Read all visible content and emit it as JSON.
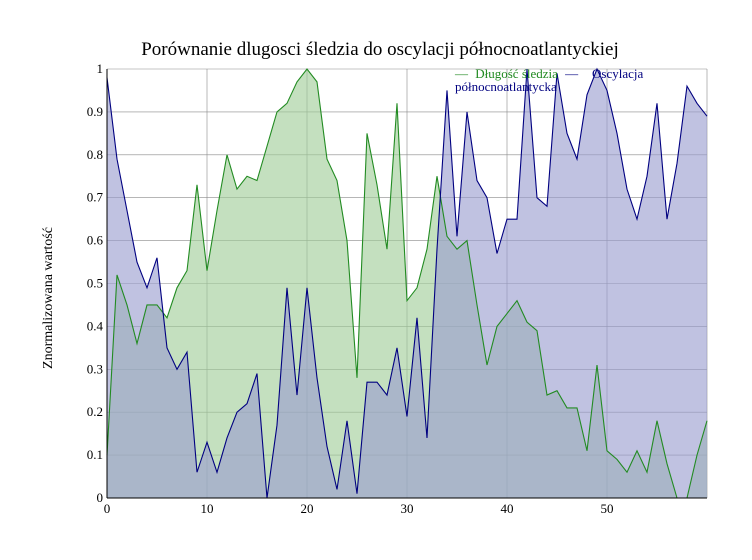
{
  "chart_data": {
    "type": "area",
    "title": "Porównanie dlugosci śledzia do oscylacji północnoatlantyckiej",
    "xlabel": "",
    "ylabel": "Znormalizowana wartość",
    "xlim": [
      0,
      60
    ],
    "ylim": [
      0,
      1
    ],
    "x_ticks": [
      0,
      10,
      20,
      30,
      40,
      50
    ],
    "y_ticks": [
      0,
      0.1,
      0.2,
      0.3,
      0.4,
      0.5,
      0.6,
      0.7,
      0.8,
      0.9,
      1
    ],
    "x_tick_labels": [
      "0",
      "10",
      "20",
      "30",
      "40",
      "50"
    ],
    "y_tick_labels": [
      "0",
      "0.1",
      "0.2",
      "0.3",
      "0.4",
      "0.5",
      "0.6",
      "0.7",
      "0.8",
      "0.9",
      "1"
    ],
    "grid": true,
    "legend_position": "top-right",
    "legend_separator": "—",
    "x": [
      0,
      1,
      2,
      3,
      4,
      5,
      6,
      7,
      8,
      9,
      10,
      11,
      12,
      13,
      14,
      15,
      16,
      17,
      18,
      19,
      20,
      21,
      22,
      23,
      24,
      25,
      26,
      27,
      28,
      29,
      30,
      31,
      32,
      33,
      34,
      35,
      36,
      37,
      38,
      39,
      40,
      41,
      42,
      43,
      44,
      45,
      46,
      47,
      48,
      49,
      50,
      51,
      52,
      53,
      54,
      55,
      56,
      57,
      58,
      59,
      60
    ],
    "series": [
      {
        "name": "Długość śledzia",
        "color": "#228B22",
        "fill": "#9fcd98",
        "values": [
          0.1,
          0.52,
          0.45,
          0.36,
          0.45,
          0.45,
          0.42,
          0.49,
          0.53,
          0.73,
          0.53,
          0.67,
          0.8,
          0.72,
          0.75,
          0.74,
          0.82,
          0.9,
          0.92,
          0.97,
          1.0,
          0.97,
          0.79,
          0.74,
          0.6,
          0.28,
          0.85,
          0.73,
          0.58,
          0.92,
          0.46,
          0.49,
          0.58,
          0.75,
          0.61,
          0.58,
          0.6,
          0.45,
          0.31,
          0.4,
          0.43,
          0.46,
          0.41,
          0.39,
          0.24,
          0.25,
          0.21,
          0.21,
          0.11,
          0.31,
          0.11,
          0.09,
          0.06,
          0.11,
          0.06,
          0.18,
          0.08,
          0.0,
          0.0,
          0.1,
          0.18
        ]
      },
      {
        "name": "Oscylacja północnoatlantycka",
        "color": "#000080",
        "fill": "#9a9ccf",
        "values": [
          0.98,
          0.79,
          0.67,
          0.55,
          0.49,
          0.56,
          0.35,
          0.3,
          0.34,
          0.06,
          0.13,
          0.06,
          0.14,
          0.2,
          0.22,
          0.29,
          0.0,
          0.17,
          0.49,
          0.24,
          0.49,
          0.28,
          0.12,
          0.02,
          0.18,
          0.01,
          0.27,
          0.27,
          0.24,
          0.35,
          0.19,
          0.42,
          0.14,
          0.58,
          0.95,
          0.61,
          0.9,
          0.74,
          0.7,
          0.57,
          0.65,
          0.65,
          1.0,
          0.7,
          0.68,
          0.99,
          0.85,
          0.79,
          0.94,
          1.0,
          0.95,
          0.85,
          0.72,
          0.65,
          0.75,
          0.92,
          0.65,
          0.78,
          0.96,
          0.92,
          0.89
        ]
      }
    ]
  }
}
